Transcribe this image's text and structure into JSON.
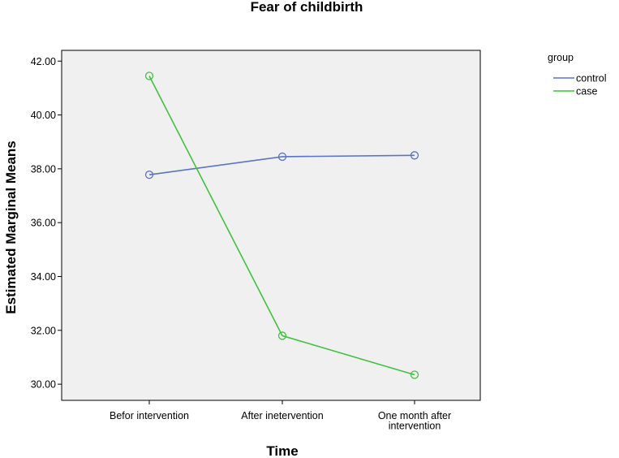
{
  "chart_data": {
    "type": "line",
    "title": "Fear of childbirth",
    "xlabel": "Time",
    "ylabel": "Estimated Marginal Means",
    "categories": [
      [
        "Befor intervention"
      ],
      [
        "After inetervention"
      ],
      [
        "One month after",
        "intervention"
      ]
    ],
    "ylim": [
      29.4,
      42.4
    ],
    "yticks": [
      30,
      32,
      34,
      36,
      38,
      40,
      42
    ],
    "ytick_labels": [
      "30.00",
      "32.00",
      "34.00",
      "36.00",
      "38.00",
      "40.00",
      "42.00"
    ],
    "grid": false,
    "legend": {
      "title": "group",
      "placement": "outside-right"
    },
    "series": [
      {
        "name": "control",
        "color": "#5b74c2",
        "values": [
          37.78,
          38.45,
          38.5
        ]
      },
      {
        "name": "case",
        "color": "#3fc23f",
        "values": [
          41.45,
          31.8,
          30.35
        ]
      }
    ],
    "plot_background": "#f0f0f0",
    "marker": "open-circle"
  }
}
